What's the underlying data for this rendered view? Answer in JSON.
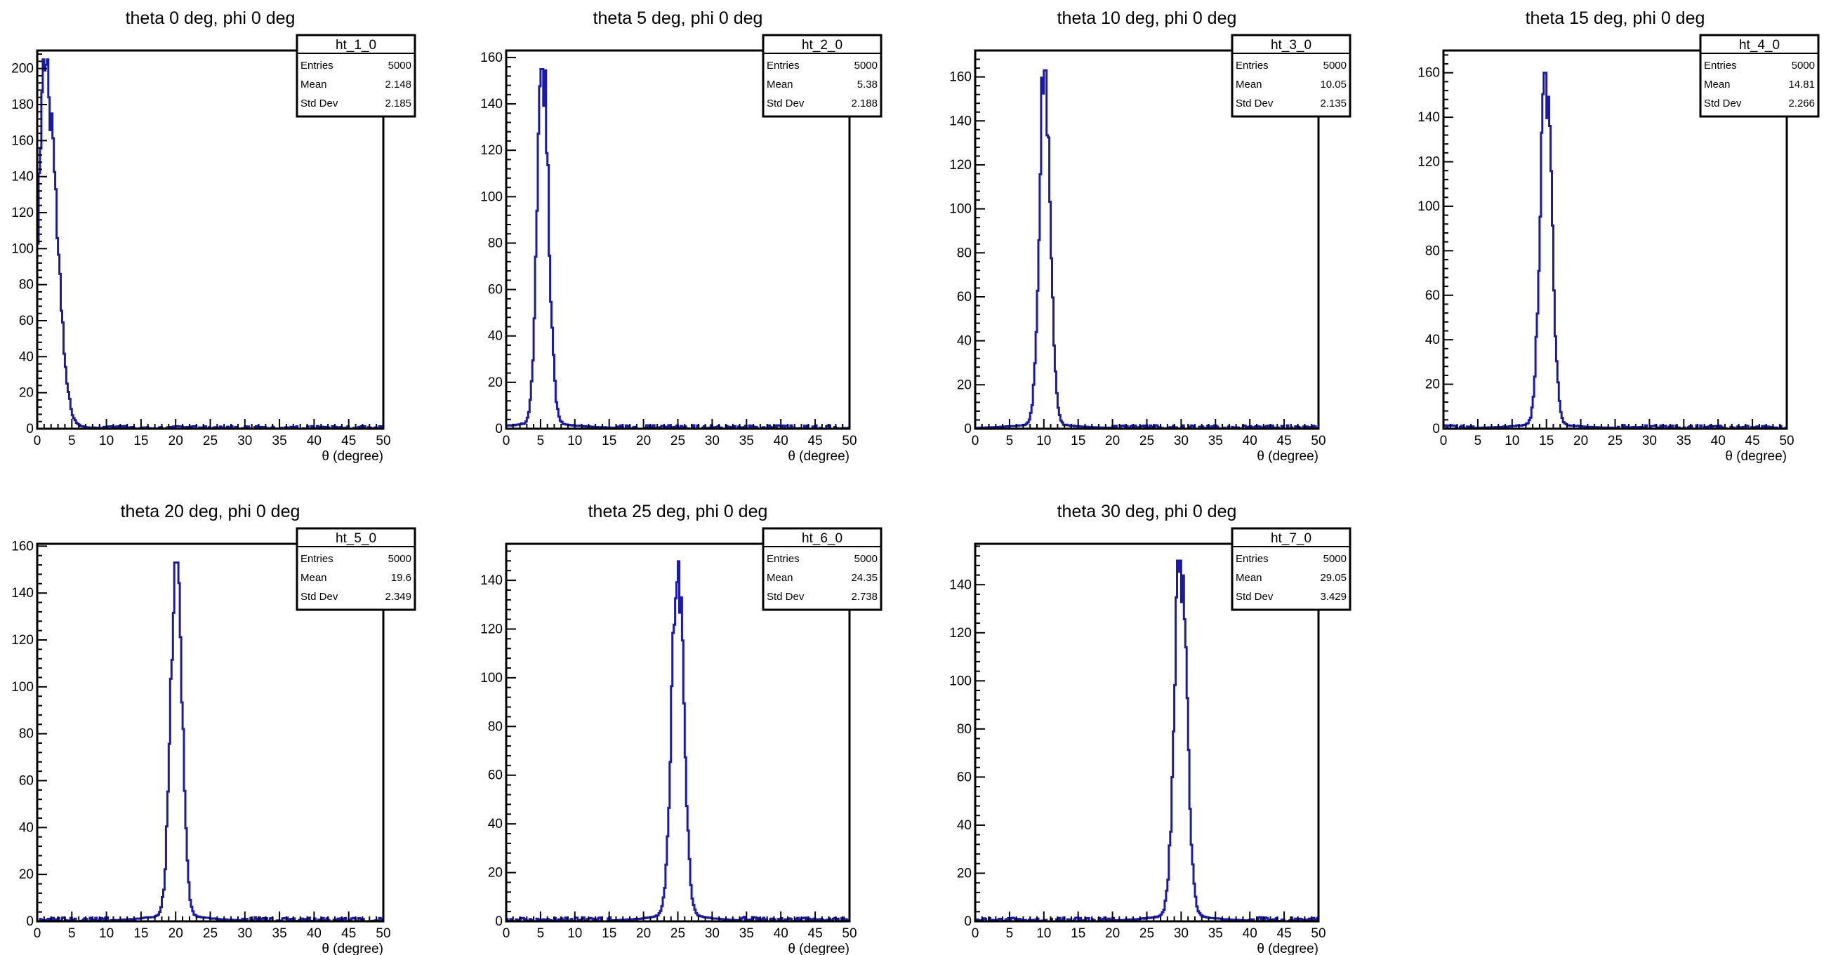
{
  "chart_data": [
    {
      "type": "histogram",
      "name": "ht_1_0",
      "title": "theta 0 deg, phi 0 deg",
      "xlabel": "θ (degree)",
      "ylabel": "",
      "xlim": [
        0,
        50
      ],
      "ylim": [
        0,
        210
      ],
      "yticks": [
        0,
        20,
        40,
        60,
        80,
        100,
        120,
        140,
        160,
        180,
        200
      ],
      "xticks": [
        0,
        5,
        10,
        15,
        20,
        25,
        30,
        35,
        40,
        45,
        50
      ],
      "center": 1.2,
      "peak": 205,
      "width_left": 0.9,
      "width_right": 1.5,
      "tail": 1.2,
      "tail_decay": 4.0,
      "stats": {
        "entries_label": "Entries",
        "entries": "5000",
        "mean_label": "Mean",
        "mean": "2.148",
        "std_label": "Std Dev",
        "std": "2.185"
      }
    },
    {
      "type": "histogram",
      "name": "ht_2_0",
      "title": "theta 5 deg, phi 0 deg",
      "xlabel": "θ (degree)",
      "ylabel": "",
      "xlim": [
        0,
        50
      ],
      "ylim": [
        0,
        163
      ],
      "yticks": [
        0,
        20,
        40,
        60,
        80,
        100,
        120,
        140,
        160
      ],
      "xticks": [
        0,
        5,
        10,
        15,
        20,
        25,
        30,
        35,
        40,
        45,
        50
      ],
      "center": 5.3,
      "peak": 155,
      "width_left": 0.75,
      "width_right": 0.85,
      "tail": 1.2,
      "tail_decay": 5.0,
      "stats": {
        "entries_label": "Entries",
        "entries": "5000",
        "mean_label": "Mean",
        "mean": "5.38",
        "std_label": "Std Dev",
        "std": "2.188"
      }
    },
    {
      "type": "histogram",
      "name": "ht_3_0",
      "title": "theta 10 deg, phi 0 deg",
      "xlabel": "θ (degree)",
      "ylabel": "",
      "xlim": [
        0,
        50
      ],
      "ylim": [
        0,
        172
      ],
      "yticks": [
        0,
        20,
        40,
        60,
        80,
        100,
        120,
        140,
        160
      ],
      "xticks": [
        0,
        5,
        10,
        15,
        20,
        25,
        30,
        35,
        40,
        45,
        50
      ],
      "center": 10.1,
      "peak": 163,
      "width_left": 0.75,
      "width_right": 0.8,
      "tail": 1.0,
      "tail_decay": 5.0,
      "stats": {
        "entries_label": "Entries",
        "entries": "5000",
        "mean_label": "Mean",
        "mean": "10.05",
        "std_label": "Std Dev",
        "std": "2.135"
      }
    },
    {
      "type": "histogram",
      "name": "ht_4_0",
      "title": "theta 15 deg, phi 0 deg",
      "xlabel": "θ (degree)",
      "ylabel": "",
      "xlim": [
        0,
        50
      ],
      "ylim": [
        0,
        170
      ],
      "yticks": [
        0,
        20,
        40,
        60,
        80,
        100,
        120,
        140,
        160
      ],
      "xticks": [
        0,
        5,
        10,
        15,
        20,
        25,
        30,
        35,
        40,
        45,
        50
      ],
      "center": 14.9,
      "peak": 160,
      "width_left": 0.8,
      "width_right": 0.85,
      "tail": 1.0,
      "tail_decay": 5.0,
      "stats": {
        "entries_label": "Entries",
        "entries": "5000",
        "mean_label": "Mean",
        "mean": "14.81",
        "std_label": "Std Dev",
        "std": "2.266"
      }
    },
    {
      "type": "histogram",
      "name": "ht_5_0",
      "title": "theta 20 deg, phi 0 deg",
      "xlabel": "θ (degree)",
      "ylabel": "",
      "xlim": [
        0,
        50
      ],
      "ylim": [
        0,
        161
      ],
      "yticks": [
        0,
        20,
        40,
        60,
        80,
        100,
        120,
        140,
        160
      ],
      "xticks": [
        0,
        5,
        10,
        15,
        20,
        25,
        30,
        35,
        40,
        45,
        50
      ],
      "center": 20.1,
      "peak": 153,
      "width_left": 0.8,
      "width_right": 0.8,
      "tail": 1.5,
      "tail_decay": 4.0,
      "stats": {
        "entries_label": "Entries",
        "entries": "5000",
        "mean_label": "Mean",
        "mean": "19.6",
        "std_label": "Std Dev",
        "std": "2.349"
      }
    },
    {
      "type": "histogram",
      "name": "ht_6_0",
      "title": "theta 25 deg, phi 0 deg",
      "xlabel": "θ (degree)",
      "ylabel": "",
      "xlim": [
        0,
        50
      ],
      "ylim": [
        0,
        155
      ],
      "yticks": [
        0,
        20,
        40,
        60,
        80,
        100,
        120,
        140
      ],
      "xticks": [
        0,
        5,
        10,
        15,
        20,
        25,
        30,
        35,
        40,
        45,
        50
      ],
      "center": 25.0,
      "peak": 148,
      "width_left": 0.85,
      "width_right": 0.85,
      "tail": 1.5,
      "tail_decay": 4.0,
      "stats": {
        "entries_label": "Entries",
        "entries": "5000",
        "mean_label": "Mean",
        "mean": "24.35",
        "std_label": "Std Dev",
        "std": "2.738"
      }
    },
    {
      "type": "histogram",
      "name": "ht_7_0",
      "title": "theta 30 deg, phi 0 deg",
      "xlabel": "θ (degree)",
      "ylabel": "",
      "xlim": [
        0,
        50
      ],
      "ylim": [
        0,
        157
      ],
      "yticks": [
        0,
        20,
        40,
        60,
        80,
        100,
        120,
        140
      ],
      "xticks": [
        0,
        5,
        10,
        15,
        20,
        25,
        30,
        35,
        40,
        45,
        50
      ],
      "center": 29.9,
      "peak": 150,
      "width_left": 0.85,
      "width_right": 0.9,
      "tail": 1.5,
      "tail_decay": 4.0,
      "stats": {
        "entries_label": "Entries",
        "entries": "5000",
        "mean_label": "Mean",
        "mean": "29.05",
        "std_label": "Std Dev",
        "std": "3.429"
      }
    }
  ],
  "colors": {
    "hist_line": "#1a1aa6",
    "axis": "#000000",
    "background": "#ffffff"
  }
}
